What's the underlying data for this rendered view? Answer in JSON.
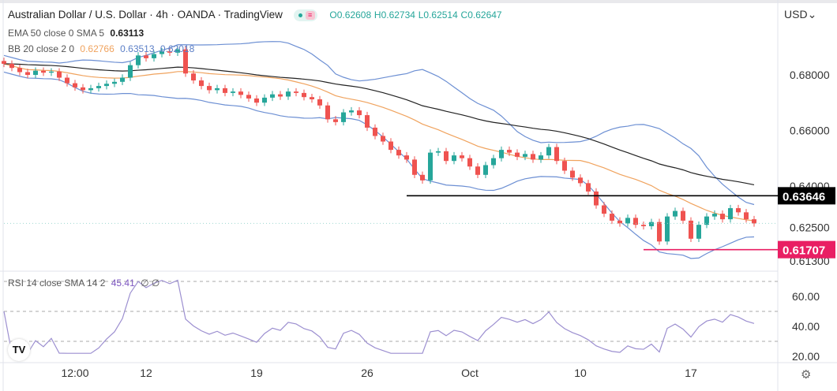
{
  "header": {
    "title": "Australian Dollar / U.S. Dollar · 4h · OANDA · TradingView",
    "ohlc": {
      "open": "O0.62608",
      "high": "H0.62734",
      "low": "L0.62514",
      "close": "C0.62647"
    },
    "ema_label": "EMA 50 close 0 SMA 5",
    "ema_value": "0.63113",
    "bb_label": "BB 20 close 2 0",
    "bb_basis": "0.62766",
    "bb_upper": "0.63513",
    "bb_lower": "0.62018",
    "rsi_label": "RSI 14 close SMA 14 2",
    "rsi_value": "45.41",
    "rsi_extra": "∅ ∅",
    "currency": "USD",
    "logo": "TV"
  },
  "colors": {
    "up": "#26a69a",
    "down": "#ef5350",
    "ema": "#222222",
    "bb_basis": "#f0a35e",
    "bb_band": "#6c8fd3",
    "rsi": "#9c8fd0",
    "support": "#000000",
    "low_line": "#e91e63"
  },
  "chart_data": {
    "type": "candlestick",
    "price_axis": {
      "ticks": [
        0.68,
        0.66,
        0.64,
        0.625,
        0.613
      ],
      "tick_labels": [
        "0.68000",
        "0.66000",
        "0.64000",
        "0.62500",
        "0.61300"
      ],
      "range": [
        0.6115,
        0.695
      ]
    },
    "rsi_axis": {
      "ticks": [
        60,
        40,
        20
      ],
      "tick_labels": [
        "60.00",
        "40.00",
        "20.00"
      ],
      "dashed_levels": [
        70,
        50,
        30
      ]
    },
    "time_axis": {
      "labels": [
        "12:00",
        "12",
        "19",
        "26",
        "Oct",
        "10",
        "17"
      ],
      "label_candle_index": [
        9,
        18,
        32,
        46,
        59,
        73,
        87
      ]
    },
    "horizontal_lines": [
      {
        "value": 0.63646,
        "label": "0.63646",
        "from_index": 51,
        "color": "#000000"
      },
      {
        "value": 0.61707,
        "label": "0.61707",
        "from_index": 81,
        "color": "#e91e63"
      }
    ],
    "last_price": 0.6265,
    "first_open": 0.685,
    "close": [
      0.684,
      0.6825,
      0.681,
      0.68,
      0.6815,
      0.6808,
      0.6812,
      0.679,
      0.677,
      0.6755,
      0.6745,
      0.6752,
      0.676,
      0.6768,
      0.6775,
      0.679,
      0.6835,
      0.687,
      0.686,
      0.6875,
      0.6885,
      0.688,
      0.6892,
      0.6805,
      0.678,
      0.676,
      0.6745,
      0.6752,
      0.6735,
      0.674,
      0.6728,
      0.6715,
      0.67,
      0.6718,
      0.673,
      0.6722,
      0.674,
      0.6735,
      0.672,
      0.6712,
      0.669,
      0.664,
      0.663,
      0.6665,
      0.6672,
      0.6655,
      0.661,
      0.658,
      0.656,
      0.653,
      0.651,
      0.6495,
      0.644,
      0.642,
      0.652,
      0.6525,
      0.649,
      0.651,
      0.65,
      0.647,
      0.644,
      0.6475,
      0.65,
      0.653,
      0.652,
      0.6505,
      0.6515,
      0.6495,
      0.651,
      0.654,
      0.649,
      0.6455,
      0.643,
      0.641,
      0.638,
      0.633,
      0.63,
      0.6275,
      0.6265,
      0.6285,
      0.626,
      0.6255,
      0.627,
      0.62,
      0.629,
      0.631,
      0.6275,
      0.621,
      0.626,
      0.629,
      0.63,
      0.628,
      0.632,
      0.6305,
      0.628,
      0.6265
    ],
    "indicators": [
      "EMA 50",
      "BB 20 2",
      "RSI 14"
    ]
  }
}
